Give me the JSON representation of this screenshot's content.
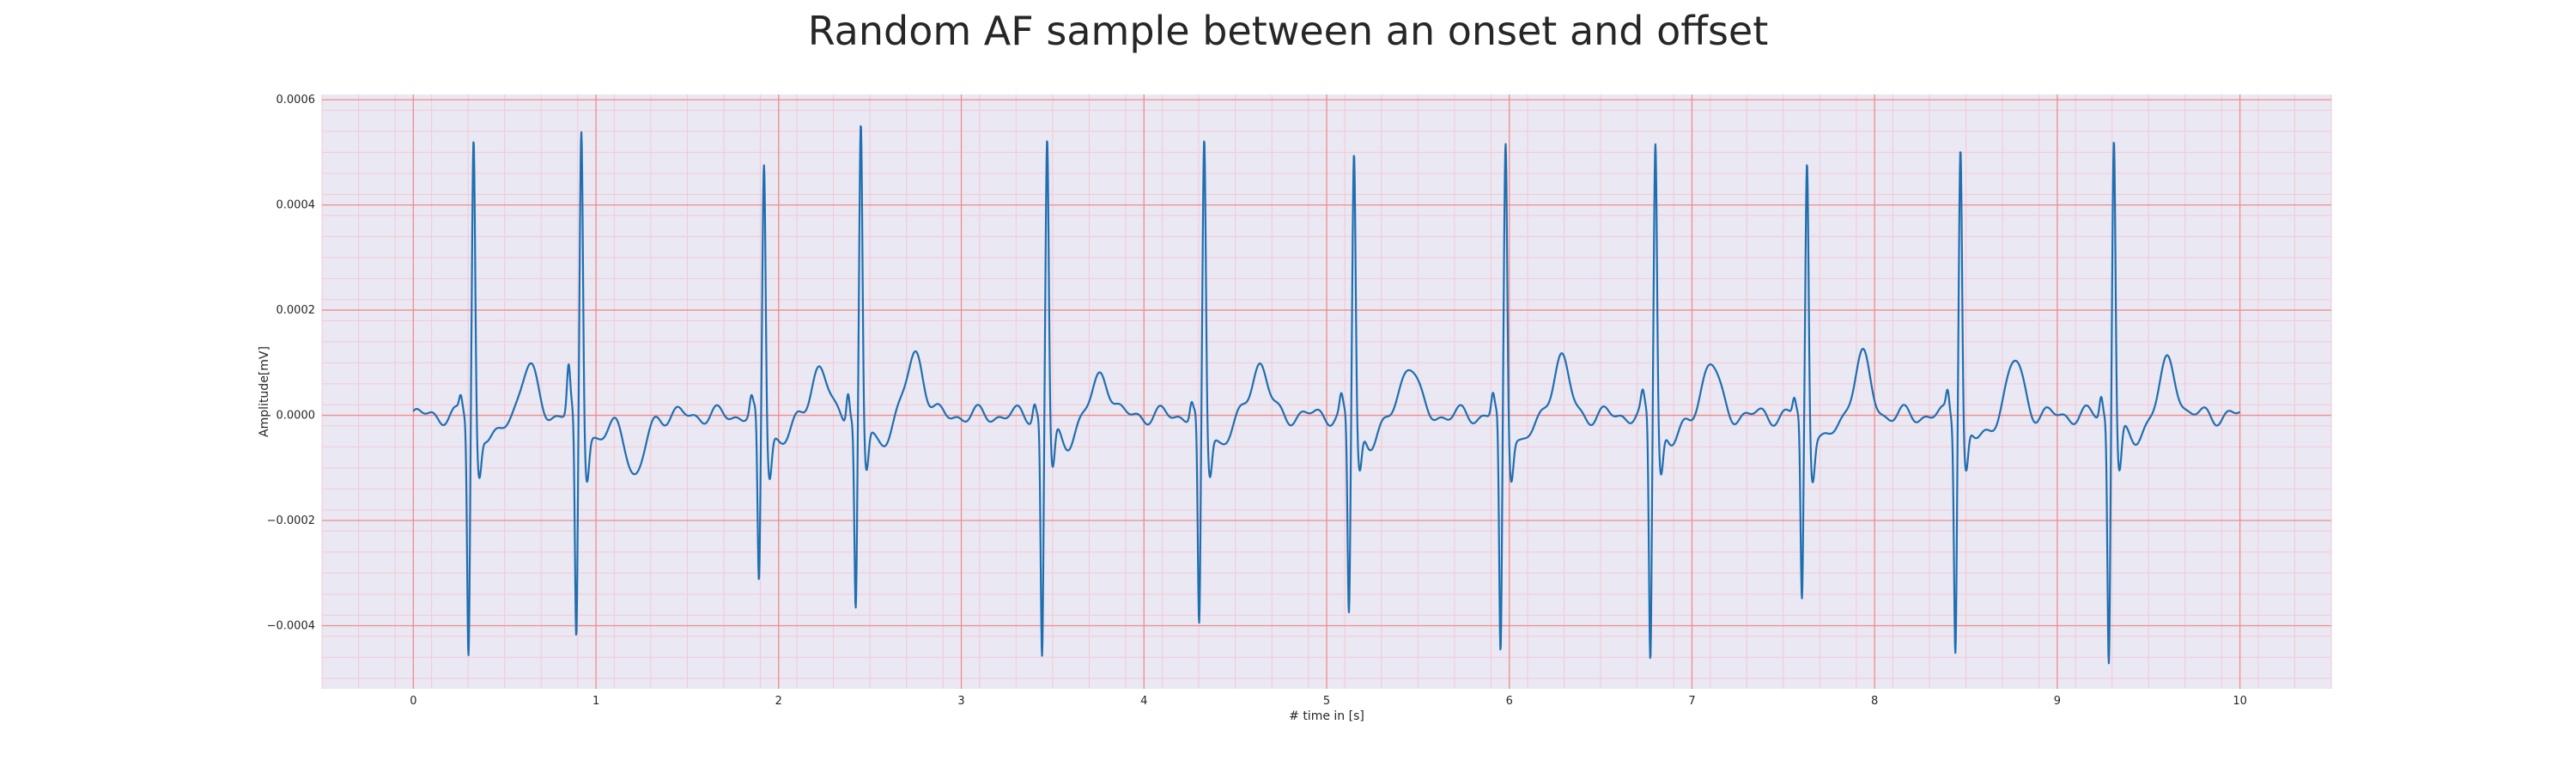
{
  "chart_data": {
    "type": "line",
    "title": "Random AF sample between an onset and offset",
    "xlabel": "# time in [s]",
    "ylabel": "Amplitude[mV]",
    "xlim": [
      -0.5,
      10.5
    ],
    "ylim": [
      -0.00052,
      0.00061
    ],
    "xticks": [
      0,
      1,
      2,
      3,
      4,
      5,
      6,
      7,
      8,
      9,
      10
    ],
    "xtick_labels": [
      "0",
      "1",
      "2",
      "3",
      "4",
      "5",
      "6",
      "7",
      "8",
      "9",
      "10"
    ],
    "yticks": [
      0.0006,
      0.0004,
      0.0002,
      0.0,
      -0.0002,
      -0.0004
    ],
    "ytick_labels": [
      "0.0006",
      "0.0004",
      "0.0002",
      "0.0000",
      "−0.0002",
      "−0.0004"
    ],
    "grid": {
      "major": true,
      "minor": true,
      "major_color": "#f28b8b",
      "minor_color": "#f3c9d6"
    },
    "background_color": "#eae8f2",
    "series": [
      {
        "color": "#1f6fb0",
        "beats": [
          {
            "t": 0.33,
            "r": 0.000535,
            "q": -0.000455,
            "p_prev": 3e-05,
            "t_amp": 9e-05
          },
          {
            "t": 0.92,
            "r": 0.000555,
            "q": -0.000435,
            "p_prev": 9e-05,
            "t_amp": -0.00012
          },
          {
            "t": 1.92,
            "r": 0.00049,
            "q": -0.00033,
            "p_prev": 3e-05,
            "t_amp": 9e-05
          },
          {
            "t": 2.45,
            "r": 0.000555,
            "q": -0.00037,
            "p_prev": 6e-05,
            "t_amp": 0.00012
          },
          {
            "t": 3.47,
            "r": 0.000535,
            "q": -0.00046,
            "p_prev": 3e-05,
            "t_amp": 8e-05
          },
          {
            "t": 4.33,
            "r": 0.000525,
            "q": -0.000415,
            "p_prev": 3e-05,
            "t_amp": 0.0001
          },
          {
            "t": 5.15,
            "r": 0.000505,
            "q": -0.00038,
            "p_prev": 3e-05,
            "t_amp": 0.0001
          },
          {
            "t": 5.98,
            "r": 0.000525,
            "q": -0.000465,
            "p_prev": 4e-05,
            "t_amp": 0.00011
          },
          {
            "t": 6.8,
            "r": 0.000535,
            "q": -0.000465,
            "p_prev": 3e-05,
            "t_amp": 0.0001
          },
          {
            "t": 7.63,
            "r": 0.000495,
            "q": -0.000355,
            "p_prev": 3e-05,
            "t_amp": 0.00011
          },
          {
            "t": 8.47,
            "r": 0.000525,
            "q": -0.000435,
            "p_prev": 4e-05,
            "t_amp": 0.0001
          },
          {
            "t": 9.31,
            "r": 0.000545,
            "q": -0.000465,
            "p_prev": 4e-05,
            "t_amp": 0.0001
          }
        ],
        "x_start": 0.0,
        "x_end": 10.0
      }
    ]
  }
}
